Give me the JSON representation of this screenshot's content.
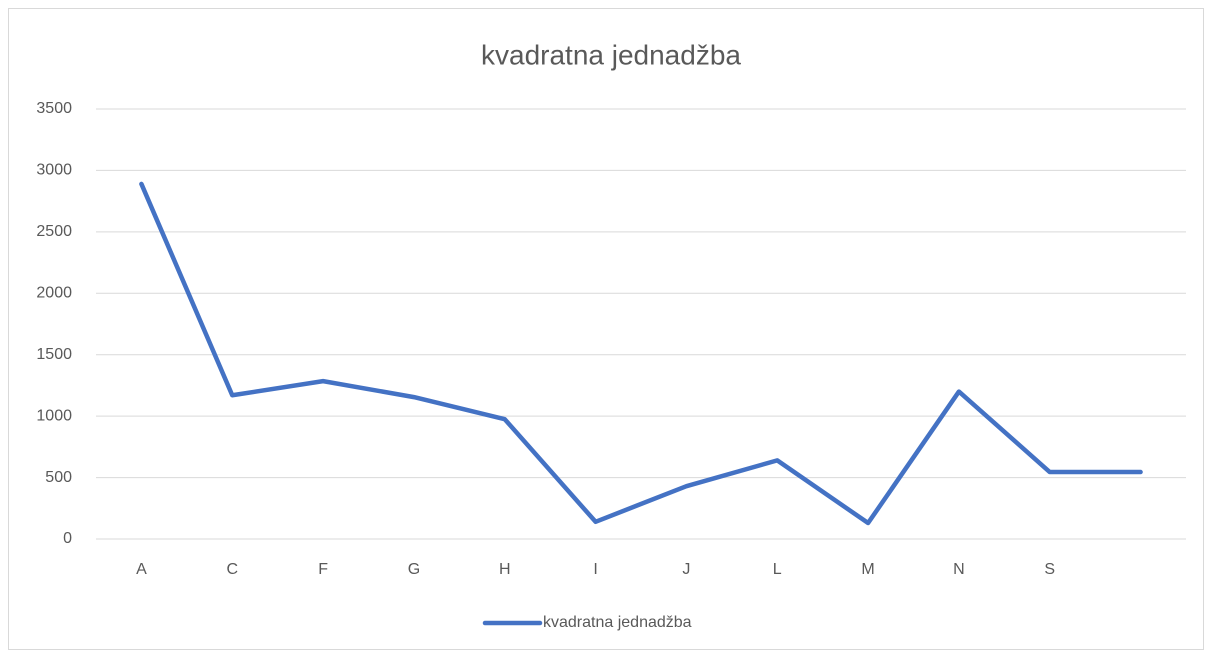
{
  "chart_data": {
    "type": "line",
    "title": "kvadratna jednadžba",
    "categories": [
      "A",
      "C",
      "F",
      "G",
      "H",
      "I",
      "J",
      "L",
      "M",
      "N",
      "S",
      null
    ],
    "series": [
      {
        "name": "kvadratna jednadžba",
        "color": "#4472c4",
        "values": [
          2890,
          1170,
          1285,
          1155,
          975,
          140,
          430,
          640,
          130,
          1200,
          545,
          545
        ]
      }
    ],
    "ylim": [
      0,
      3500
    ],
    "yticks": [
      0,
      500,
      1000,
      1500,
      2000,
      2500,
      3000,
      3500
    ],
    "grid": true,
    "legend": "bottom"
  }
}
